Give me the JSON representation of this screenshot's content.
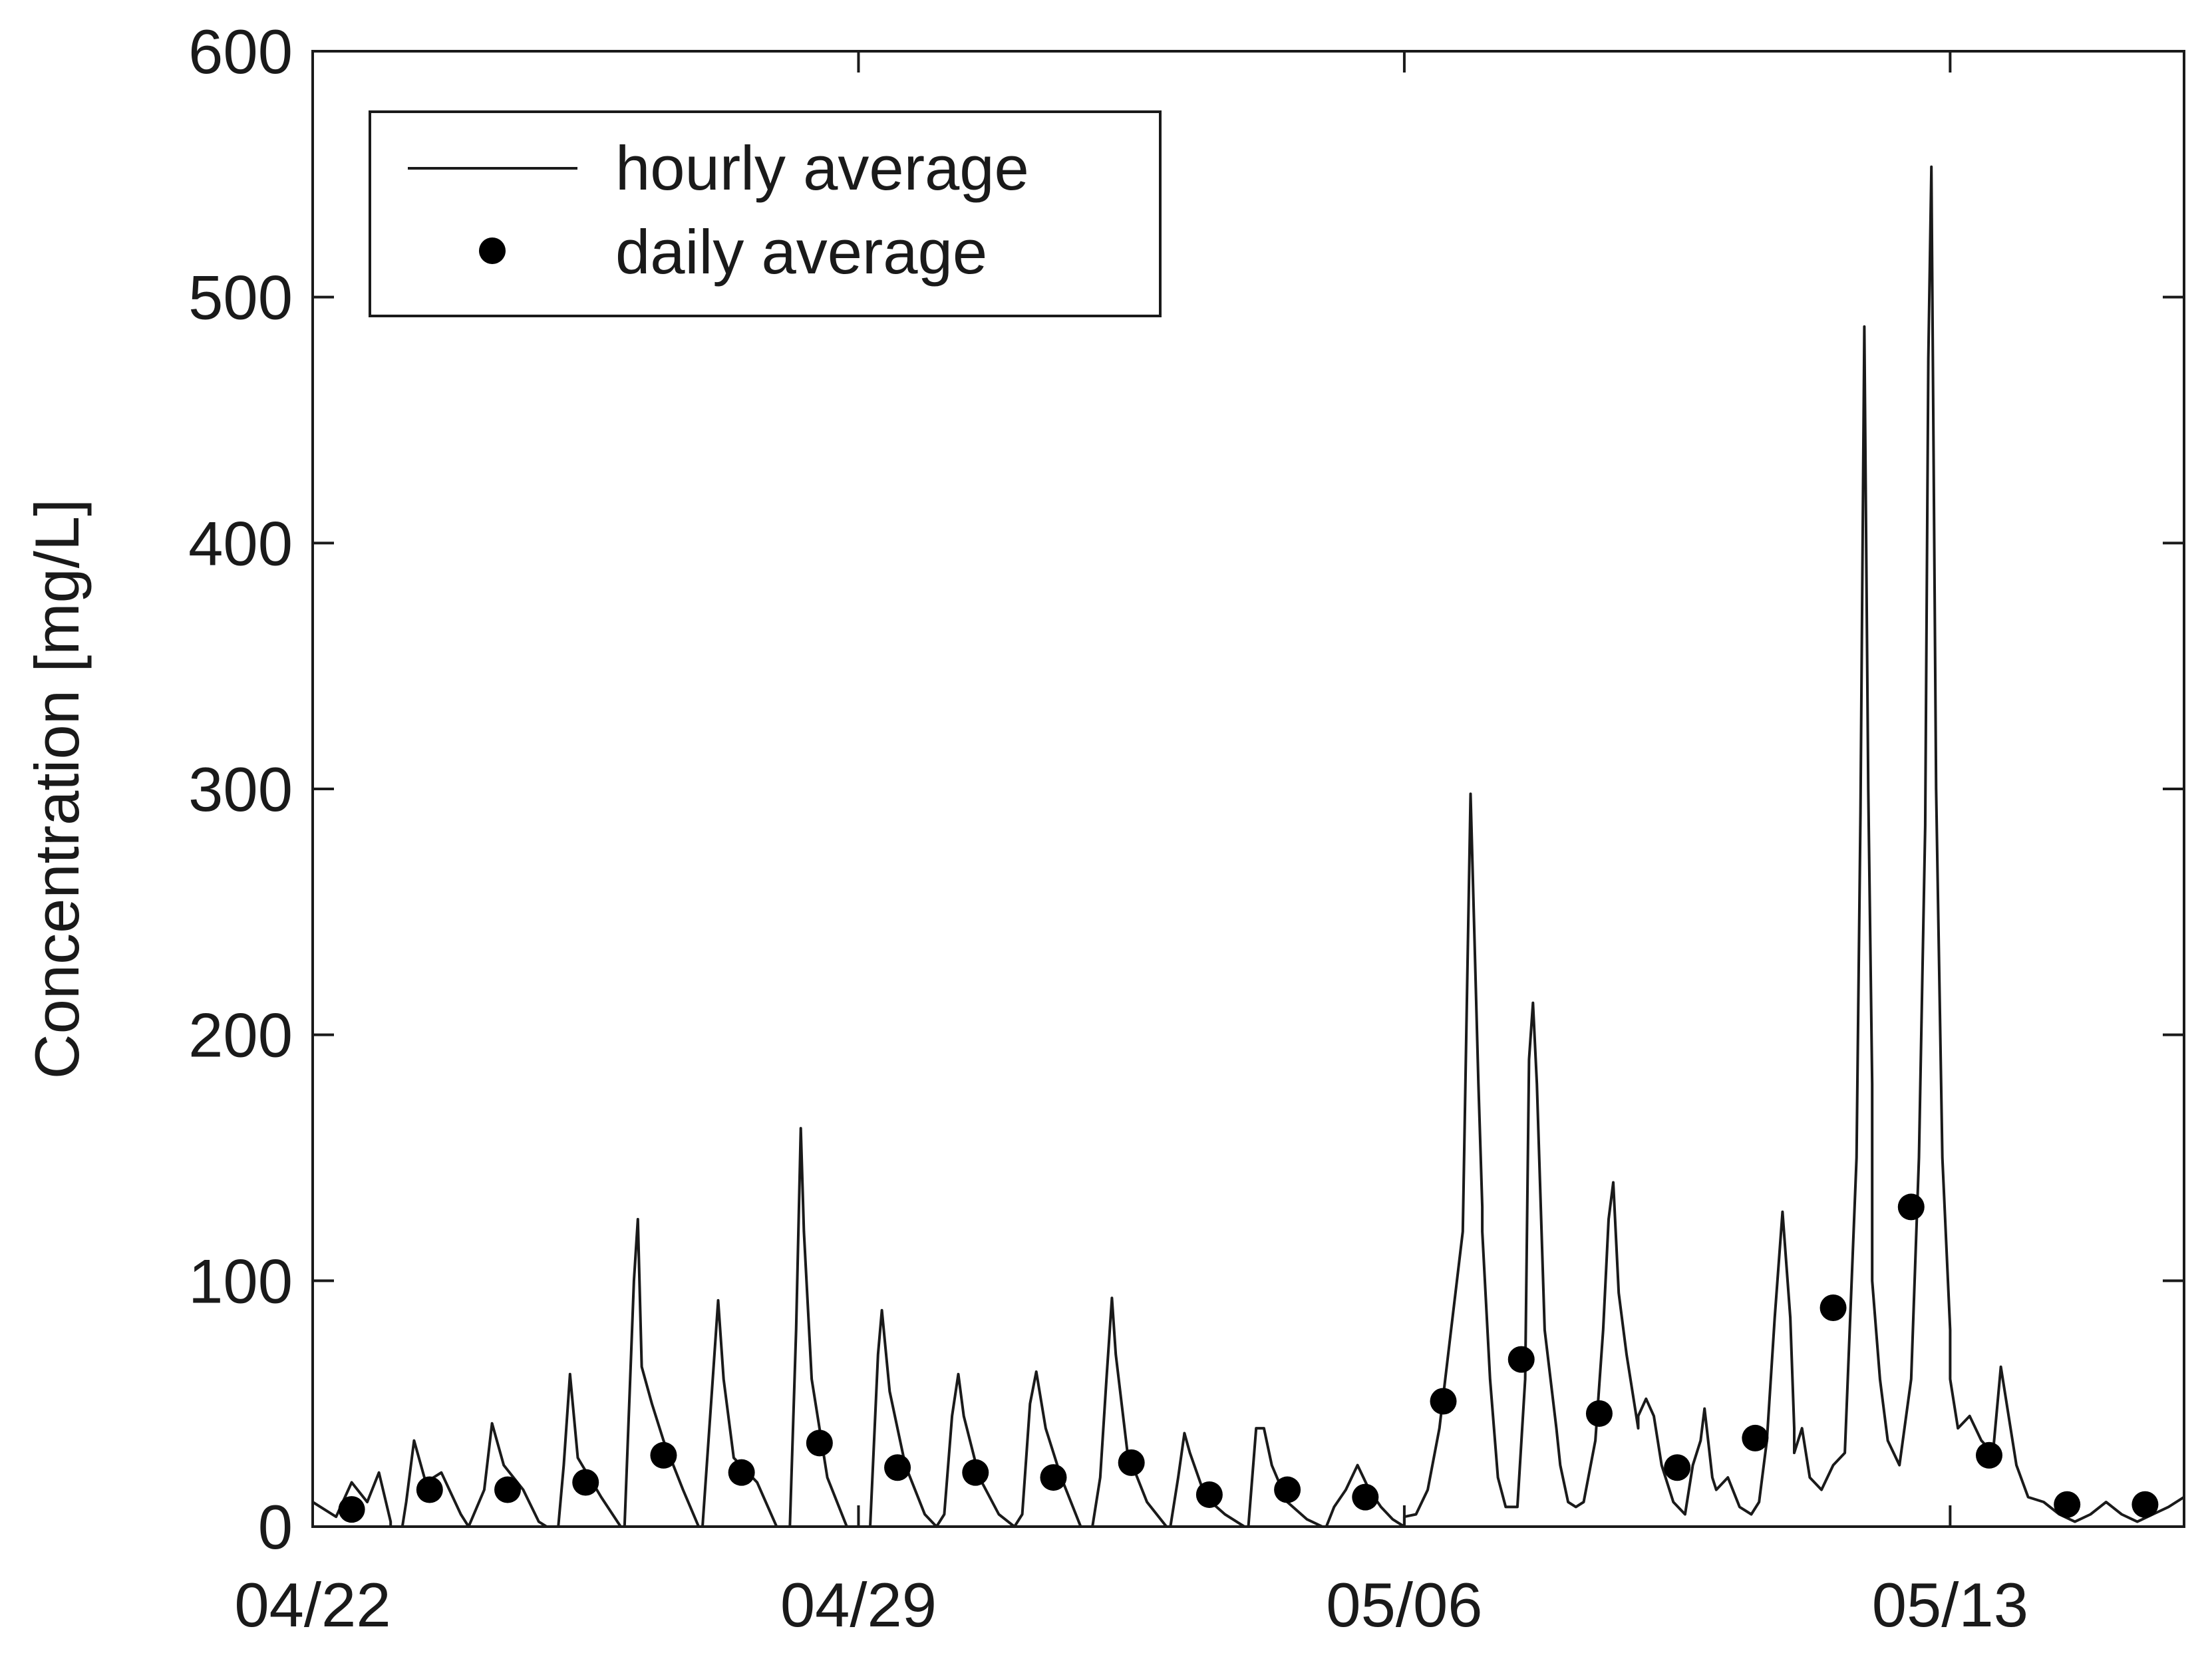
{
  "chart_data": {
    "type": "line",
    "title": "",
    "xlabel": "",
    "ylabel": "Concentration [mg/L]",
    "ylim": [
      0,
      600
    ],
    "yticks": [
      0,
      100,
      200,
      300,
      400,
      500,
      600
    ],
    "xlim": [
      "2000-04-22",
      "2000-05-16"
    ],
    "xticks": [
      {
        "label": "04/22",
        "date": "2000-04-22"
      },
      {
        "label": "04/29",
        "date": "2000-04-29"
      },
      {
        "label": "05/06",
        "date": "2000-05-06"
      },
      {
        "label": "05/13",
        "date": "2000-05-13"
      }
    ],
    "grid": false,
    "legend": "top-left",
    "series": [
      {
        "name": "hourly average",
        "style": "line",
        "color": "#1a1a1a",
        "daily_profiles": [
          {
            "date": "2000-04-22",
            "points": [
              [
                0,
                10
              ],
              [
                0.3,
                4
              ],
              [
                0.5,
                18
              ],
              [
                0.7,
                10
              ],
              [
                0.85,
                22
              ],
              [
                1,
                2
              ]
            ]
          },
          {
            "date": "2000-04-23",
            "points": [
              [
                0,
                0
              ],
              [
                0.15,
                0
              ],
              [
                0.2,
                10
              ],
              [
                0.3,
                35
              ],
              [
                0.45,
                18
              ],
              [
                0.65,
                22
              ],
              [
                0.9,
                5
              ],
              [
                1,
                0
              ]
            ]
          },
          {
            "date": "2000-04-24",
            "points": [
              [
                0,
                0
              ],
              [
                0.2,
                15
              ],
              [
                0.3,
                42
              ],
              [
                0.45,
                25
              ],
              [
                0.7,
                15
              ],
              [
                0.9,
                2
              ],
              [
                1,
                0
              ]
            ]
          },
          {
            "date": "2000-04-25",
            "points": [
              [
                0,
                0
              ],
              [
                0.15,
                0
              ],
              [
                0.22,
                25
              ],
              [
                0.3,
                62
              ],
              [
                0.4,
                28
              ],
              [
                0.7,
                12
              ],
              [
                0.95,
                0
              ]
            ]
          },
          {
            "date": "2000-04-26",
            "points": [
              [
                0,
                0
              ],
              [
                0.12,
                100
              ],
              [
                0.17,
                125
              ],
              [
                0.22,
                65
              ],
              [
                0.35,
                50
              ],
              [
                0.5,
                35
              ],
              [
                0.75,
                15
              ],
              [
                0.95,
                0
              ]
            ]
          },
          {
            "date": "2000-04-27",
            "points": [
              [
                0,
                0
              ],
              [
                0.12,
                55
              ],
              [
                0.2,
                92
              ],
              [
                0.27,
                60
              ],
              [
                0.4,
                28
              ],
              [
                0.7,
                18
              ],
              [
                0.95,
                0
              ]
            ]
          },
          {
            "date": "2000-04-28",
            "points": [
              [
                0,
                0
              ],
              [
                0.12,
                0
              ],
              [
                0.2,
                80
              ],
              [
                0.26,
                162
              ],
              [
                0.3,
                120
              ],
              [
                0.4,
                60
              ],
              [
                0.6,
                20
              ],
              [
                0.85,
                0
              ]
            ]
          },
          {
            "date": "2000-04-29",
            "points": [
              [
                0,
                0
              ],
              [
                0.15,
                0
              ],
              [
                0.25,
                70
              ],
              [
                0.3,
                88
              ],
              [
                0.4,
                55
              ],
              [
                0.6,
                25
              ],
              [
                0.85,
                5
              ],
              [
                1,
                0
              ]
            ]
          },
          {
            "date": "2000-04-30",
            "points": [
              [
                0,
                0
              ],
              [
                0.1,
                5
              ],
              [
                0.2,
                45
              ],
              [
                0.28,
                62
              ],
              [
                0.35,
                45
              ],
              [
                0.55,
                20
              ],
              [
                0.8,
                5
              ],
              [
                1,
                0
              ]
            ]
          },
          {
            "date": "2000-05-01",
            "points": [
              [
                0,
                0
              ],
              [
                0.1,
                5
              ],
              [
                0.2,
                50
              ],
              [
                0.28,
                63
              ],
              [
                0.4,
                40
              ],
              [
                0.6,
                20
              ],
              [
                0.85,
                0
              ],
              [
                1,
                0
              ]
            ]
          },
          {
            "date": "2000-05-02",
            "points": [
              [
                0,
                0
              ],
              [
                0.1,
                20
              ],
              [
                0.18,
                60
              ],
              [
                0.25,
                93
              ],
              [
                0.3,
                70
              ],
              [
                0.45,
                30
              ],
              [
                0.7,
                10
              ],
              [
                0.95,
                0
              ]
            ]
          },
          {
            "date": "2000-05-03",
            "points": [
              [
                0,
                0
              ],
              [
                0.1,
                20
              ],
              [
                0.18,
                38
              ],
              [
                0.25,
                30
              ],
              [
                0.45,
                12
              ],
              [
                0.7,
                5
              ],
              [
                0.95,
                0
              ]
            ]
          },
          {
            "date": "2000-05-04",
            "points": [
              [
                0,
                0
              ],
              [
                0.1,
                40
              ],
              [
                0.2,
                40
              ],
              [
                0.3,
                25
              ],
              [
                0.5,
                10
              ],
              [
                0.75,
                3
              ],
              [
                0.95,
                0
              ]
            ]
          },
          {
            "date": "2000-05-05",
            "points": [
              [
                0,
                0
              ],
              [
                0.1,
                8
              ],
              [
                0.25,
                15
              ],
              [
                0.4,
                25
              ],
              [
                0.55,
                15
              ],
              [
                0.7,
                8
              ],
              [
                0.85,
                3
              ],
              [
                1,
                0
              ]
            ]
          },
          {
            "date": "2000-05-06",
            "points": [
              [
                0,
                4
              ],
              [
                0.15,
                5
              ],
              [
                0.3,
                15
              ],
              [
                0.45,
                40
              ],
              [
                0.6,
                80
              ],
              [
                0.75,
                120
              ],
              [
                0.85,
                298
              ],
              [
                0.95,
                180
              ],
              [
                1,
                130
              ]
            ]
          },
          {
            "date": "2000-05-07",
            "points": [
              [
                0,
                120
              ],
              [
                0.1,
                60
              ],
              [
                0.2,
                20
              ],
              [
                0.3,
                8
              ],
              [
                0.45,
                8
              ],
              [
                0.55,
                60
              ],
              [
                0.6,
                190
              ],
              [
                0.65,
                213
              ],
              [
                0.7,
                180
              ],
              [
                0.8,
                80
              ],
              [
                0.95,
                40
              ]
            ]
          },
          {
            "date": "2000-05-08",
            "points": [
              [
                0,
                25
              ],
              [
                0.1,
                10
              ],
              [
                0.2,
                8
              ],
              [
                0.3,
                10
              ],
              [
                0.45,
                35
              ],
              [
                0.55,
                80
              ],
              [
                0.62,
                125
              ],
              [
                0.68,
                140
              ],
              [
                0.75,
                95
              ],
              [
                0.85,
                70
              ],
              [
                1,
                40
              ]
            ]
          },
          {
            "date": "2000-05-09",
            "points": [
              [
                0,
                45
              ],
              [
                0.1,
                52
              ],
              [
                0.2,
                45
              ],
              [
                0.3,
                25
              ],
              [
                0.45,
                10
              ],
              [
                0.6,
                5
              ],
              [
                0.7,
                25
              ],
              [
                0.8,
                35
              ],
              [
                0.85,
                48
              ],
              [
                0.95,
                20
              ],
              [
                1,
                15
              ]
            ]
          },
          {
            "date": "2000-05-10",
            "points": [
              [
                0,
                15
              ],
              [
                0.15,
                20
              ],
              [
                0.3,
                8
              ],
              [
                0.45,
                5
              ],
              [
                0.55,
                10
              ],
              [
                0.65,
                35
              ],
              [
                0.75,
                85
              ],
              [
                0.85,
                128
              ],
              [
                0.95,
                85
              ],
              [
                1,
                40
              ]
            ]
          },
          {
            "date": "2000-05-11",
            "points": [
              [
                0,
                30
              ],
              [
                0.1,
                40
              ],
              [
                0.2,
                20
              ],
              [
                0.35,
                15
              ],
              [
                0.5,
                25
              ],
              [
                0.65,
                30
              ],
              [
                0.8,
                150
              ],
              [
                0.85,
                290
              ],
              [
                0.9,
                488
              ],
              [
                0.95,
                300
              ],
              [
                1,
                180
              ]
            ]
          },
          {
            "date": "2000-05-12",
            "points": [
              [
                0,
                100
              ],
              [
                0.1,
                60
              ],
              [
                0.2,
                35
              ],
              [
                0.35,
                25
              ],
              [
                0.5,
                60
              ],
              [
                0.6,
                150
              ],
              [
                0.68,
                285
              ],
              [
                0.72,
                475
              ],
              [
                0.76,
                553
              ],
              [
                0.82,
                300
              ],
              [
                0.9,
                150
              ],
              [
                1,
                80
              ]
            ]
          },
          {
            "date": "2000-05-13",
            "points": [
              [
                0,
                60
              ],
              [
                0.1,
                40
              ],
              [
                0.25,
                45
              ],
              [
                0.4,
                35
              ],
              [
                0.55,
                30
              ],
              [
                0.65,
                65
              ],
              [
                0.75,
                45
              ],
              [
                0.85,
                25
              ],
              [
                1,
                12
              ]
            ]
          },
          {
            "date": "2000-05-14",
            "points": [
              [
                0,
                12
              ],
              [
                0.2,
                10
              ],
              [
                0.4,
                5
              ],
              [
                0.6,
                2
              ],
              [
                0.8,
                5
              ],
              [
                1,
                10
              ]
            ]
          },
          {
            "date": "2000-05-15",
            "points": [
              [
                0,
                10
              ],
              [
                0.2,
                5
              ],
              [
                0.4,
                2
              ],
              [
                0.6,
                5
              ],
              [
                0.8,
                8
              ],
              [
                1,
                12
              ]
            ]
          }
        ]
      },
      {
        "name": "daily average",
        "style": "marker",
        "color": "#000000",
        "x": [
          "2000-04-22",
          "2000-04-23",
          "2000-04-24",
          "2000-04-25",
          "2000-04-26",
          "2000-04-27",
          "2000-04-28",
          "2000-04-29",
          "2000-04-30",
          "2000-05-01",
          "2000-05-02",
          "2000-05-03",
          "2000-05-04",
          "2000-05-05",
          "2000-05-06",
          "2000-05-07",
          "2000-05-08",
          "2000-05-09",
          "2000-05-10",
          "2000-05-11",
          "2000-05-12",
          "2000-05-13",
          "2000-05-14",
          "2000-05-15"
        ],
        "y": [
          7,
          15,
          15,
          18,
          29,
          22,
          34,
          24,
          22,
          20,
          26,
          13,
          15,
          12,
          51,
          68,
          46,
          24,
          36,
          89,
          130,
          29,
          9,
          9
        ]
      }
    ]
  }
}
